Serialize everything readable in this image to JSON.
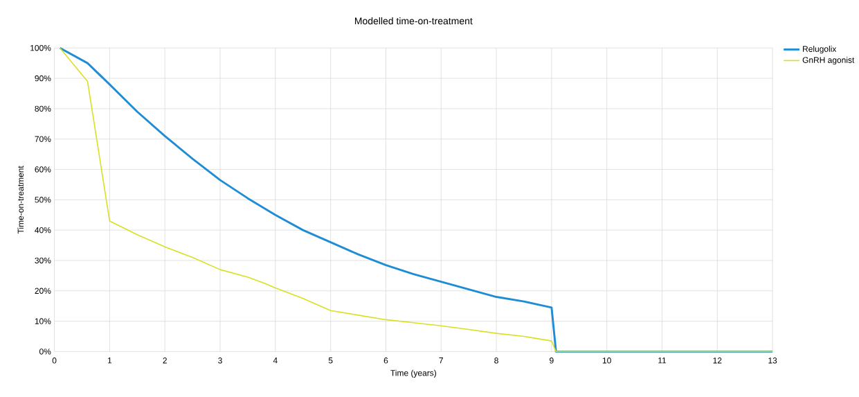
{
  "chart_data": {
    "type": "line",
    "title": "Modelled time-on-treatment",
    "xlabel": "Time (years)",
    "ylabel": "Time-on-treatment",
    "xlim": [
      0,
      13
    ],
    "xticks": [
      0,
      1,
      2,
      3,
      4,
      5,
      6,
      7,
      8,
      9,
      10,
      11,
      12,
      13
    ],
    "ylim": [
      0,
      100
    ],
    "yticks": [
      {
        "value": 0,
        "label": "0%"
      },
      {
        "value": 10,
        "label": "10%"
      },
      {
        "value": 20,
        "label": "20%"
      },
      {
        "value": 30,
        "label": "30%"
      },
      {
        "value": 40,
        "label": "40%"
      },
      {
        "value": 50,
        "label": "50%"
      },
      {
        "value": 60,
        "label": "60%"
      },
      {
        "value": 70,
        "label": "70%"
      },
      {
        "value": 80,
        "label": "80%"
      },
      {
        "value": 90,
        "label": "90%"
      },
      {
        "value": 100,
        "label": "100%"
      }
    ],
    "grid": true,
    "legend": "top right",
    "marker": "none",
    "line_style": "solid",
    "series": [
      {
        "name": "Relugolix",
        "color": "#1f8dd6",
        "x": [
          0.1,
          0.6,
          1.0,
          1.5,
          2,
          2.5,
          3,
          3.5,
          4,
          4.5,
          5,
          5.5,
          6,
          6.5,
          7,
          7.5,
          8,
          8.5,
          9,
          9.08,
          13
        ],
        "values": [
          100,
          95,
          88,
          79,
          71,
          63.5,
          56.5,
          50.5,
          45,
          40,
          36,
          32,
          28.5,
          25.5,
          23,
          20.5,
          18,
          16.5,
          14.5,
          0,
          0
        ]
      },
      {
        "name": "GnRH agonist",
        "color": "#d9e021",
        "x": [
          0.1,
          0.6,
          1.0,
          1.5,
          2,
          2.5,
          3,
          3.5,
          3.8,
          4,
          4.5,
          5,
          5.5,
          6,
          6.5,
          7,
          7.5,
          8,
          8.5,
          9,
          9.08,
          13
        ],
        "values": [
          100,
          89,
          43,
          38.5,
          34.5,
          31,
          27,
          24.5,
          22.5,
          21,
          17.5,
          13.5,
          12,
          10.5,
          9.5,
          8.5,
          7.3,
          6,
          5,
          3.5,
          0,
          0
        ]
      }
    ]
  }
}
